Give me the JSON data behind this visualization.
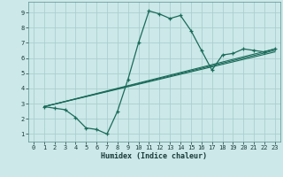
{
  "xlabel": "Humidex (Indice chaleur)",
  "bg_color": "#cce8e8",
  "grid_color": "#aacfcf",
  "line_color": "#1a6b5a",
  "xlim": [
    -0.5,
    23.5
  ],
  "ylim": [
    0.5,
    9.7
  ],
  "xticks": [
    0,
    1,
    2,
    3,
    4,
    5,
    6,
    7,
    8,
    9,
    10,
    11,
    12,
    13,
    14,
    15,
    16,
    17,
    18,
    19,
    20,
    21,
    22,
    23
  ],
  "yticks": [
    1,
    2,
    3,
    4,
    5,
    6,
    7,
    8,
    9
  ],
  "main_x": [
    1,
    2,
    3,
    4,
    5,
    6,
    7,
    8,
    9,
    10,
    11,
    12,
    13,
    14,
    15,
    16,
    17,
    18,
    19,
    20,
    21,
    22,
    23
  ],
  "main_y": [
    2.8,
    2.7,
    2.6,
    2.1,
    1.4,
    1.3,
    1.0,
    2.5,
    4.6,
    7.0,
    9.1,
    8.9,
    8.6,
    8.8,
    7.8,
    6.5,
    5.2,
    6.2,
    6.3,
    6.6,
    6.5,
    6.4,
    6.6
  ],
  "line1_x": [
    1,
    23
  ],
  "line1_y": [
    2.8,
    6.6
  ],
  "line2_x": [
    1,
    23
  ],
  "line2_y": [
    2.8,
    6.5
  ],
  "line3_x": [
    1,
    23
  ],
  "line3_y": [
    2.8,
    6.4
  ]
}
